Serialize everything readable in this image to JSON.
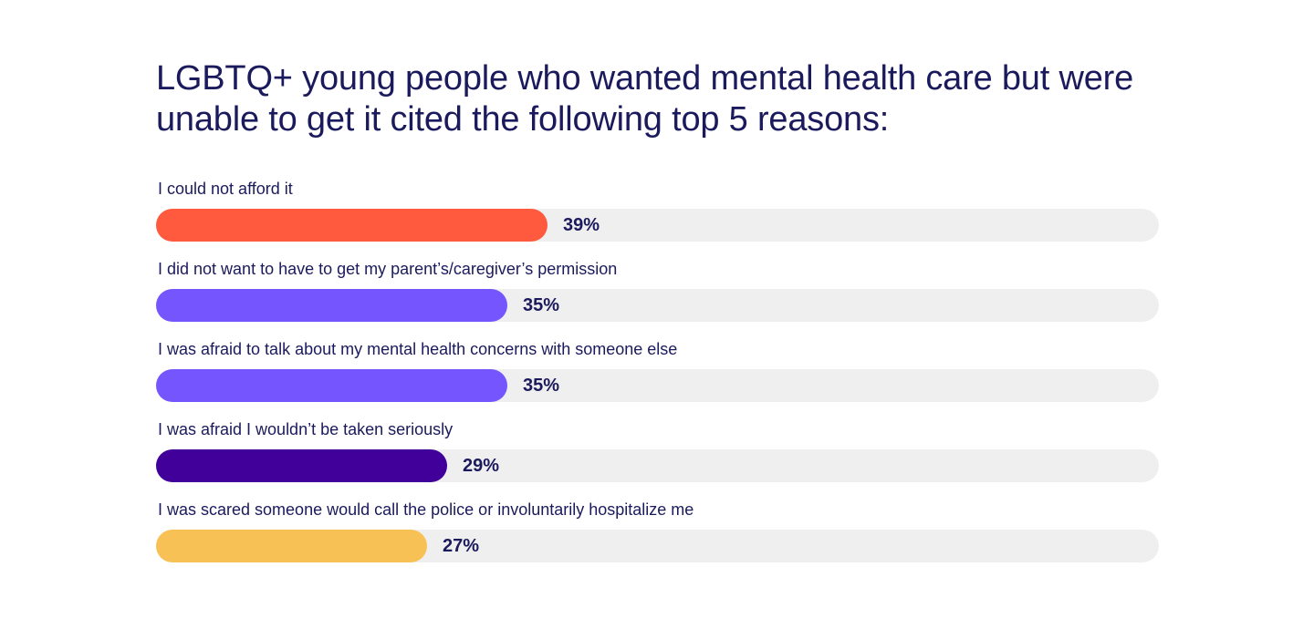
{
  "chart_data": {
    "type": "bar",
    "orientation": "horizontal",
    "title": "LGBTQ+ young people who wanted mental health care but were unable to get it cited the following top 5 reasons:",
    "categories": [
      "I could not afford it",
      "I did not want to have to get my parent’s/caregiver’s permission",
      "I was afraid to talk about my mental health concerns with someone else",
      "I was afraid I wouldn’t be taken seriously",
      "I was scared someone would call the police or involuntarily hospitalize me"
    ],
    "values": [
      39,
      35,
      35,
      29,
      27
    ],
    "value_labels": [
      "39%",
      "35%",
      "35%",
      "29%",
      "27%"
    ],
    "colors": [
      "#ff5a3d",
      "#7556fe",
      "#7556fe",
      "#410099",
      "#f8c155"
    ],
    "track_color": "#efefef",
    "xlim": [
      0,
      100
    ],
    "grid": false,
    "legend": "none"
  }
}
